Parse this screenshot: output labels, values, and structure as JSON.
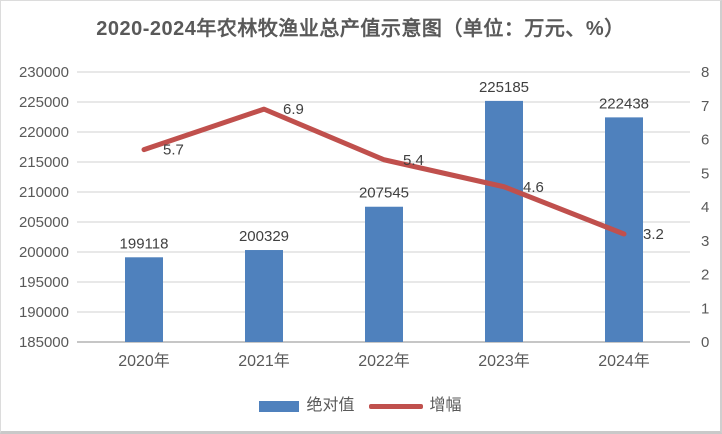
{
  "title": "2020-2024年农林牧渔业总产值示意图（单位：万元、%）",
  "legend": {
    "items": [
      {
        "label": "绝对值",
        "marker": "bar-swatch",
        "color": "#4f81bd"
      },
      {
        "label": "增幅",
        "marker": "line-swatch",
        "color": "#c0504d"
      }
    ]
  },
  "colors": {
    "bar": "#4f81bd",
    "line": "#c0504d",
    "grid": "#d9d9d9",
    "axis_line": "#c6c6c6",
    "axis_text": "#595959",
    "data_label": "#404040",
    "title_text": "#595959",
    "background": "#ffffff"
  },
  "chart_data": {
    "type": "bar+line combo",
    "title": "2020-2024年农林牧渔业总产值示意图（单位：万元、%）",
    "categories": [
      "2020年",
      "2021年",
      "2022年",
      "2023年",
      "2024年"
    ],
    "series": [
      {
        "name": "绝对值",
        "type": "bar",
        "axis": "left",
        "unit": "万元",
        "color": "#4f81bd",
        "values": [
          199118,
          200329,
          207545,
          225185,
          222438
        ],
        "labels": [
          "199118",
          "200329",
          "207545",
          "225185",
          "222438"
        ]
      },
      {
        "name": "增幅",
        "type": "line",
        "axis": "right",
        "unit": "%",
        "color": "#c0504d",
        "values": [
          5.7,
          6.9,
          5.4,
          4.6,
          3.2
        ],
        "labels": [
          "5.7",
          "6.9",
          "5.4",
          "4.6",
          "3.2"
        ]
      }
    ],
    "left_axis": {
      "min": 185000,
      "max": 230000,
      "step": 5000,
      "tick_labels": [
        "185000",
        "190000",
        "195000",
        "200000",
        "205000",
        "210000",
        "215000",
        "220000",
        "225000",
        "230000"
      ]
    },
    "right_axis": {
      "min": 0,
      "max": 8,
      "step": 1,
      "tick_labels": [
        "0",
        "1",
        "2",
        "3",
        "4",
        "5",
        "6",
        "7",
        "8"
      ]
    },
    "grid": true,
    "legend_position": "bottom"
  }
}
